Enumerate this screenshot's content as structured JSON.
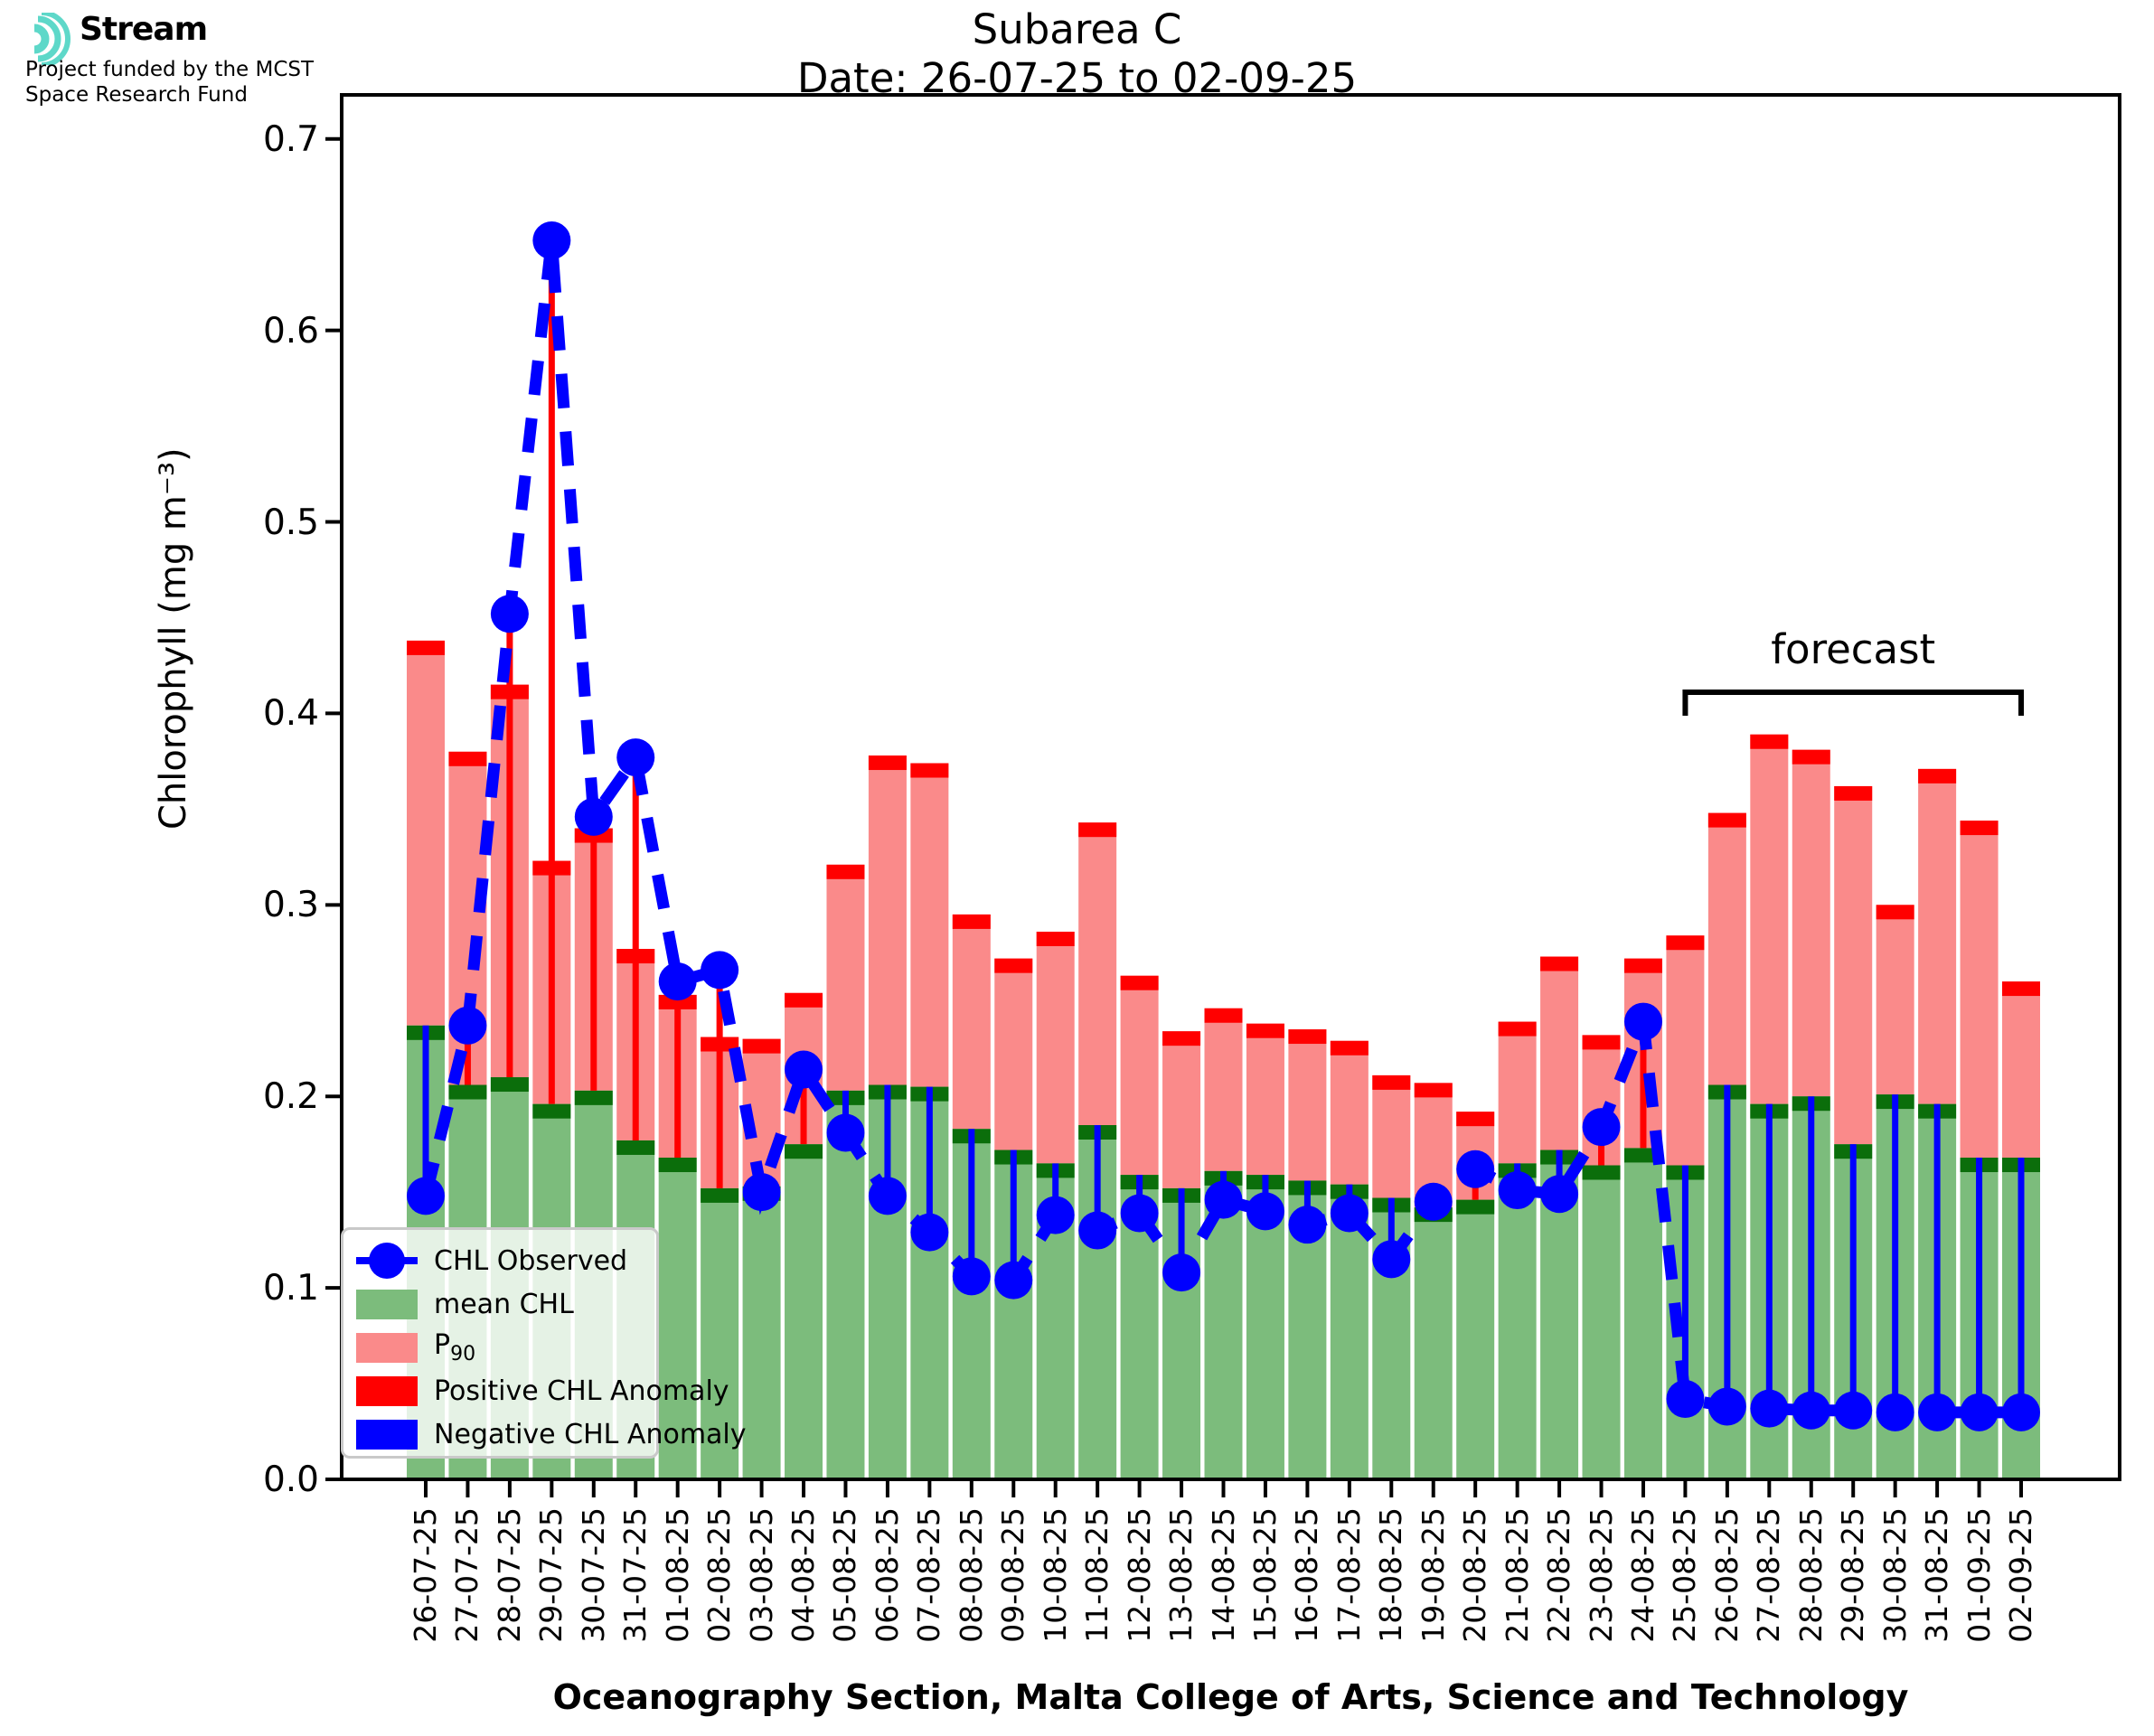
{
  "logo": {
    "brand": "Stream",
    "subtitle_line1": "Project funded by the MCST",
    "subtitle_line2": "Space Research Fund",
    "accent_color": "#5ED8C9"
  },
  "title": {
    "line1": "Subarea C",
    "line2": "Date: 26-07-25 to 02-09-25"
  },
  "annotations": {
    "forecast_label": "forecast",
    "forecast_start": "25-08-25",
    "forecast_end": "02-09-25"
  },
  "chart_data": {
    "type": "bar",
    "title": "Subarea C",
    "subtitle": "Date: 26-07-25 to 02-09-25",
    "xlabel": "Oceanography Section, Malta College of Arts, Science and Technology",
    "ylabel": "Chlorophyll (mg m⁻³)",
    "ylim": [
      0,
      0.723
    ],
    "yticks": [
      0.0,
      0.1,
      0.2,
      0.3,
      0.4,
      0.5,
      0.6,
      0.7
    ],
    "grid": false,
    "legend_position": "lower left",
    "categories": [
      "26-07-25",
      "27-07-25",
      "28-07-25",
      "29-07-25",
      "30-07-25",
      "31-07-25",
      "01-08-25",
      "02-08-25",
      "03-08-25",
      "04-08-25",
      "05-08-25",
      "06-08-25",
      "07-08-25",
      "08-08-25",
      "09-08-25",
      "10-08-25",
      "11-08-25",
      "12-08-25",
      "13-08-25",
      "14-08-25",
      "15-08-25",
      "16-08-25",
      "17-08-25",
      "18-08-25",
      "19-08-25",
      "20-08-25",
      "21-08-25",
      "22-08-25",
      "23-08-25",
      "24-08-25",
      "25-08-25",
      "26-08-25",
      "27-08-25",
      "28-08-25",
      "29-08-25",
      "30-08-25",
      "31-08-25",
      "01-09-25",
      "02-09-25"
    ],
    "series": [
      {
        "name": "mean CHL",
        "type": "bar",
        "values": [
          0.237,
          0.206,
          0.21,
          0.196,
          0.203,
          0.177,
          0.168,
          0.152,
          0.153,
          0.175,
          0.203,
          0.206,
          0.205,
          0.183,
          0.172,
          0.165,
          0.185,
          0.159,
          0.152,
          0.161,
          0.159,
          0.156,
          0.154,
          0.147,
          0.142,
          0.146,
          0.165,
          0.172,
          0.164,
          0.173,
          0.164,
          0.206,
          0.196,
          0.2,
          0.175,
          0.201,
          0.196,
          0.168,
          0.168
        ]
      },
      {
        "name": "P90",
        "type": "bar",
        "values": [
          0.438,
          0.38,
          0.415,
          0.323,
          0.34,
          0.277,
          0.253,
          0.231,
          0.23,
          0.254,
          0.321,
          0.378,
          0.374,
          0.295,
          0.272,
          0.286,
          0.343,
          0.263,
          0.234,
          0.246,
          0.238,
          0.235,
          0.229,
          0.211,
          0.207,
          0.192,
          0.239,
          0.273,
          0.232,
          0.272,
          0.284,
          0.348,
          0.389,
          0.381,
          0.362,
          0.3,
          0.371,
          0.344,
          0.26
        ]
      },
      {
        "name": "CHL Observed",
        "type": "line",
        "values": [
          0.148,
          0.237,
          0.452,
          0.647,
          0.346,
          0.377,
          0.26,
          0.266,
          0.15,
          0.214,
          0.181,
          0.148,
          0.129,
          0.106,
          0.104,
          0.138,
          0.13,
          0.139,
          0.108,
          0.146,
          0.14,
          0.133,
          0.139,
          0.115,
          0.145,
          0.162,
          0.151,
          0.149,
          0.184,
          0.239,
          0.042,
          0.038,
          0.037,
          0.036,
          0.036,
          0.035,
          0.035,
          0.035,
          0.035
        ]
      }
    ],
    "forecast_indices": [
      30,
      38
    ],
    "legend": {
      "entries": [
        {
          "label": "CHL Observed"
        },
        {
          "label": "mean CHL"
        },
        {
          "label": "P",
          "sub": "90"
        },
        {
          "label": "Positive CHL Anomaly"
        },
        {
          "label": "Negative CHL Anomaly"
        }
      ]
    },
    "colors": {
      "observed": "#0000FF",
      "mean": "#7CBC7C",
      "mean_edge": "#0B6E0B",
      "p90": "#FA8A8A",
      "p90_edge": "#FF0000",
      "positive_anomaly": "#FF0000",
      "negative_anomaly": "#0000FF",
      "axis": "#000000"
    }
  }
}
